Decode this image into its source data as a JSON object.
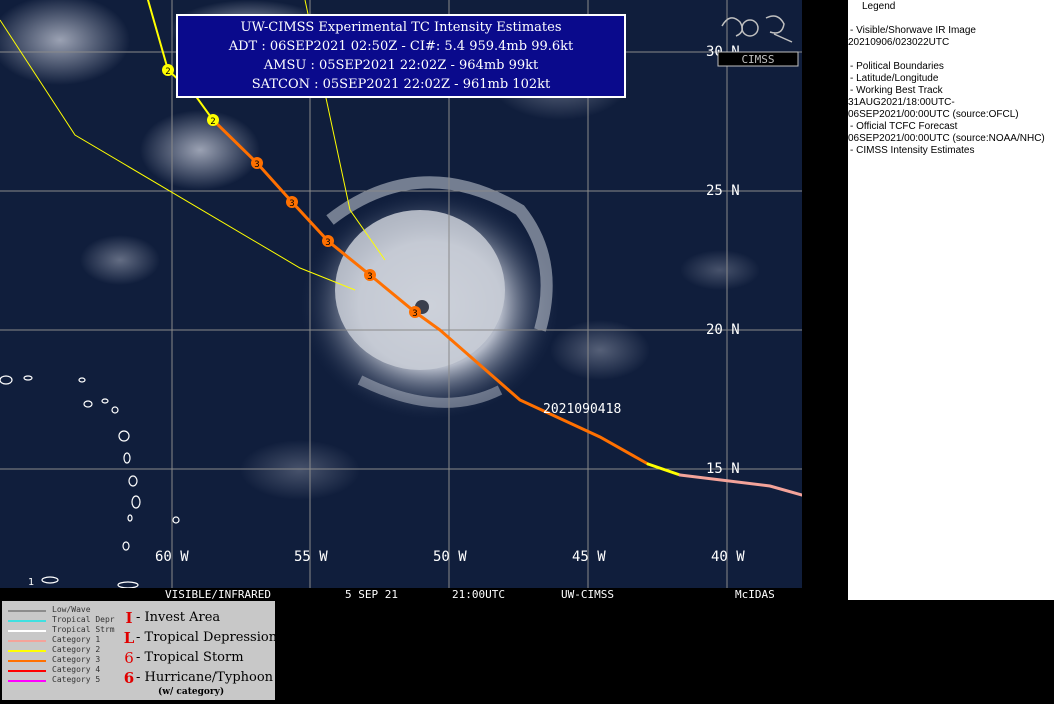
{
  "info_box": {
    "title": "UW-CIMSS Experimental TC Intensity Estimates",
    "adt": "ADT : 06SEP2021 02:50Z -  CI#: 5.4   959.4mb   99.6kt",
    "amsu": "AMSU : 05SEP2021 22:02Z -   964mb   99kt",
    "satcon": "SATCON : 05SEP2021 22:02Z -   961mb   102kt"
  },
  "map": {
    "latitude_labels": [
      "30 N",
      "25 N",
      "20 N",
      "15 N"
    ],
    "longitude_labels": [
      "60 W",
      "55 W",
      "50 W",
      "45 W",
      "40 W"
    ],
    "track_timestamp": "2021090418",
    "track_markers": [
      "2",
      "2",
      "3",
      "3",
      "3",
      "3",
      "3"
    ],
    "corner_label": "1",
    "colors": {
      "ocean": "#101e3c",
      "grid": "#8a8a8a",
      "forecast_track": "#ffff00",
      "category_3": "#ff7000",
      "category_1": "#f4a39a",
      "tropical_storm": "#ffff00"
    }
  },
  "status_bar": {
    "product": "VISIBLE/INFRARED",
    "date": "5 SEP 21",
    "time": "21:00UTC",
    "agency": "UW-CIMSS",
    "software": "McIDAS"
  },
  "legend_panel": {
    "title": "Legend",
    "lines": [
      "-  Visible/Shorwave IR Image",
      "20210906/023022UTC",
      "-  Political Boundaries",
      "-  Latitude/Longitude",
      "-  Working Best Track",
      "31AUG2021/18:00UTC-",
      "06SEP2021/00:00UTC   (source:OFCL)",
      "-  Official TCFC Forecast",
      "06SEP2021/00:00UTC  (source:NOAA/NHC)",
      "-  CIMSS Intensity Estimates"
    ]
  },
  "category_legend": {
    "categories": [
      {
        "label": "Low/Wave",
        "color": "#8c8c8c"
      },
      {
        "label": "Tropical Depr",
        "color": "#40e0e0"
      },
      {
        "label": "Tropical Strm",
        "color": "#ffffff"
      },
      {
        "label": "Category 1",
        "color": "#f4a39a"
      },
      {
        "label": "Category 2",
        "color": "#ffff00"
      },
      {
        "label": "Category 3",
        "color": "#ff7000"
      },
      {
        "label": "Category 4",
        "color": "#ff0000"
      },
      {
        "label": "Category 5",
        "color": "#ff00ff"
      }
    ],
    "symbols": [
      {
        "glyph": "I",
        "label": "- Invest Area"
      },
      {
        "glyph": "L",
        "label": "- Tropical Depression"
      },
      {
        "glyph": "6",
        "label": "- Tropical Storm"
      },
      {
        "glyph": "6",
        "label": "- Hurricane/Typhoon"
      }
    ],
    "note": "(w/ category)"
  },
  "logo_text": "CIMSS"
}
